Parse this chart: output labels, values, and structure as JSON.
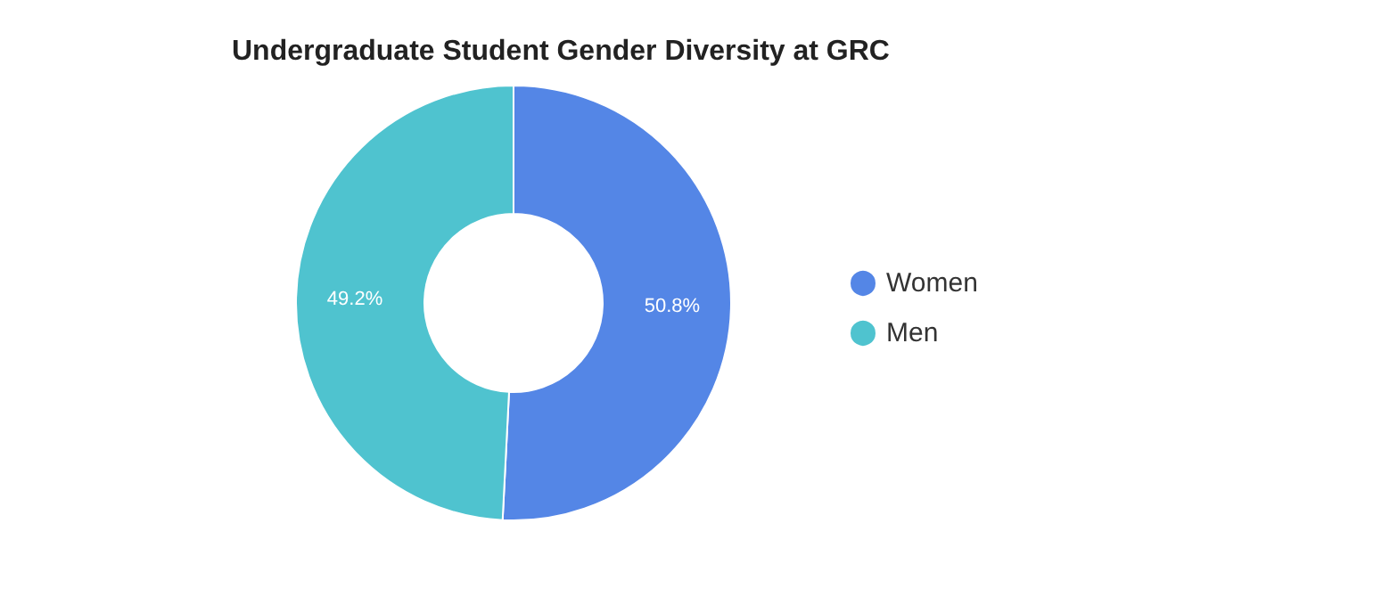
{
  "chart_data": {
    "type": "donut",
    "title": "Undergraduate Student Gender Diversity at GRC",
    "categories": [
      "Women",
      "Men"
    ],
    "values": [
      50.8,
      49.2
    ],
    "colors": [
      "#5486e6",
      "#4fc3cf"
    ],
    "value_labels": [
      "50.8%",
      "49.2%"
    ],
    "legend": "right"
  }
}
